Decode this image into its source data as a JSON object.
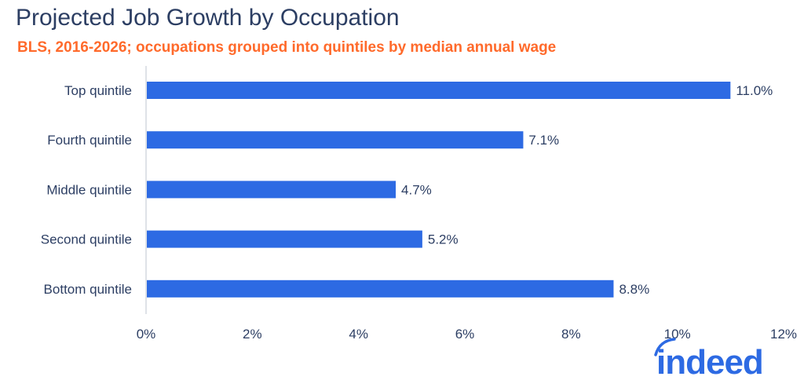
{
  "chart_data": {
    "type": "bar",
    "orientation": "horizontal",
    "title": "Projected Job Growth by Occupation",
    "subtitle": "BLS, 2016-2026; occupations grouped into quintiles by median annual wage",
    "categories": [
      "Top quintile",
      "Fourth quintile",
      "Middle quintile",
      "Second quintile",
      "Bottom quintile"
    ],
    "values": [
      11.0,
      7.1,
      4.7,
      5.2,
      8.8
    ],
    "data_labels": [
      "11.0%",
      "7.1%",
      "4.7%",
      "5.2%",
      "8.8%"
    ],
    "xlim": [
      0,
      12
    ],
    "xticks": [
      0,
      2,
      4,
      6,
      8,
      10,
      12
    ],
    "xtick_labels": [
      "0%",
      "2%",
      "4%",
      "6%",
      "8%",
      "10%",
      "12%"
    ],
    "xlabel": "",
    "ylabel": "",
    "grid": false,
    "colors": {
      "bar": "#2d6ae3",
      "title": "#2c3e63",
      "subtitle": "#ff6a2b",
      "text": "#2c3e63"
    }
  },
  "logo": {
    "text": "indeed"
  }
}
